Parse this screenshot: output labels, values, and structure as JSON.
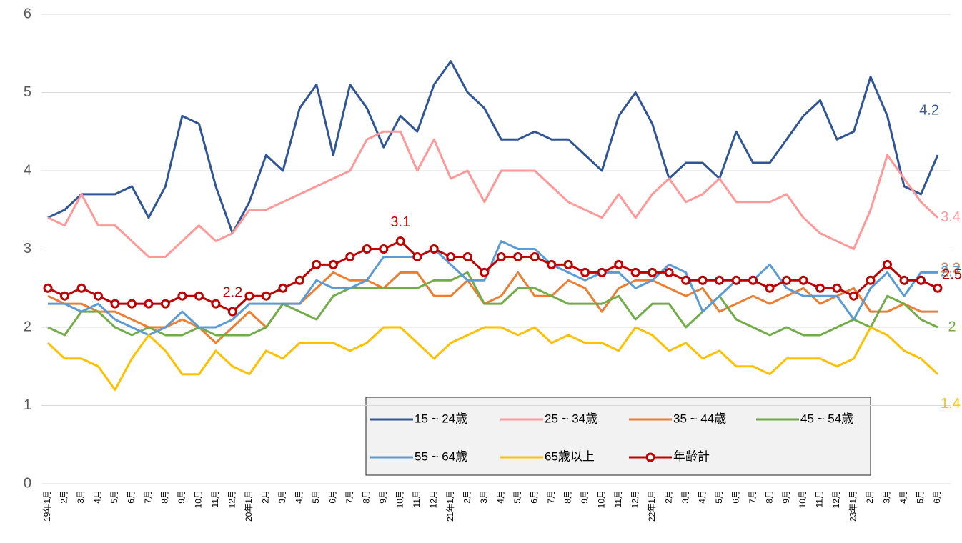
{
  "chart_data": {
    "type": "line",
    "categories": [
      "19年1月",
      "2月",
      "3月",
      "4月",
      "5月",
      "6月",
      "7月",
      "8月",
      "9月",
      "10月",
      "11月",
      "12月",
      "20年1月",
      "2月",
      "3月",
      "4月",
      "5月",
      "6月",
      "7月",
      "8月",
      "9月",
      "10月",
      "11月",
      "12月",
      "21年1月",
      "2月",
      "3月",
      "4月",
      "5月",
      "6月",
      "7月",
      "8月",
      "9月",
      "10月",
      "11月",
      "12月",
      "22年1月",
      "2月",
      "3月",
      "4月",
      "5月",
      "6月",
      "7月",
      "8月",
      "9月",
      "10月",
      "11月",
      "12月",
      "23年1月",
      "2月",
      "3月",
      "4月",
      "5月",
      "6月"
    ],
    "ylim": [
      0,
      6
    ],
    "yticks": [
      0,
      1,
      2,
      3,
      4,
      5,
      6
    ],
    "grid": true,
    "legend": "bottom-right",
    "series": [
      {
        "name": "15 ~ 24歳",
        "color": "#2f5597",
        "markers": false,
        "labeled_points": [
          53
        ],
        "values": [
          3.4,
          3.5,
          3.7,
          3.7,
          3.7,
          3.8,
          3.4,
          3.8,
          4.7,
          4.6,
          3.8,
          3.2,
          3.6,
          4.2,
          4.0,
          4.8,
          5.1,
          4.2,
          5.1,
          4.8,
          4.3,
          4.7,
          4.5,
          5.1,
          5.4,
          5.0,
          4.8,
          4.4,
          4.4,
          4.5,
          4.4,
          4.4,
          4.2,
          4.0,
          4.7,
          5.0,
          4.6,
          3.9,
          4.1,
          4.1,
          3.9,
          4.5,
          4.1,
          4.1,
          4.4,
          4.7,
          4.9,
          4.4,
          4.5,
          5.2,
          4.7,
          3.8,
          3.7,
          4.2
        ]
      },
      {
        "name": "25 ~ 34歳",
        "color": "#ff9999",
        "markers": false,
        "labeled_points": [
          53
        ],
        "values": [
          3.4,
          3.3,
          3.7,
          3.3,
          3.3,
          3.1,
          2.9,
          2.9,
          3.1,
          3.3,
          3.1,
          3.2,
          3.5,
          3.5,
          3.6,
          3.7,
          3.8,
          3.9,
          4.0,
          4.4,
          4.5,
          4.5,
          4.0,
          4.4,
          3.9,
          4.0,
          3.6,
          4.0,
          4.0,
          4.0,
          3.8,
          3.6,
          3.5,
          3.4,
          3.7,
          3.4,
          3.7,
          3.9,
          3.6,
          3.7,
          3.9,
          3.6,
          3.6,
          3.6,
          3.7,
          3.4,
          3.2,
          3.1,
          3.0,
          3.5,
          4.2,
          3.9,
          3.6,
          3.4
        ]
      },
      {
        "name": "35 ~ 44歳",
        "color": "#ed7d31",
        "markers": false,
        "labeled_points": [
          53
        ],
        "values": [
          2.4,
          2.3,
          2.3,
          2.2,
          2.2,
          2.1,
          2.0,
          2.0,
          2.1,
          2.0,
          1.8,
          2.0,
          2.2,
          2.0,
          2.3,
          2.3,
          2.5,
          2.7,
          2.6,
          2.6,
          2.5,
          2.7,
          2.7,
          2.4,
          2.4,
          2.6,
          2.3,
          2.4,
          2.7,
          2.4,
          2.4,
          2.6,
          2.5,
          2.2,
          2.5,
          2.6,
          2.6,
          2.5,
          2.4,
          2.5,
          2.2,
          2.3,
          2.4,
          2.3,
          2.4,
          2.5,
          2.3,
          2.4,
          2.5,
          2.2,
          2.2,
          2.3,
          2.2,
          2.2
        ]
      },
      {
        "name": "45 ~ 54歳",
        "color": "#70ad47",
        "markers": false,
        "labeled_points": [
          53
        ],
        "values": [
          2.0,
          1.9,
          2.2,
          2.2,
          2.0,
          1.9,
          2.0,
          1.9,
          1.9,
          2.0,
          1.9,
          1.9,
          1.9,
          2.0,
          2.3,
          2.2,
          2.1,
          2.4,
          2.5,
          2.5,
          2.5,
          2.5,
          2.5,
          2.6,
          2.6,
          2.7,
          2.3,
          2.3,
          2.5,
          2.5,
          2.4,
          2.3,
          2.3,
          2.3,
          2.4,
          2.1,
          2.3,
          2.3,
          2.0,
          2.2,
          2.4,
          2.1,
          2.0,
          1.9,
          2.0,
          1.9,
          1.9,
          2.0,
          2.1,
          2.0,
          2.4,
          2.3,
          2.1,
          2.0
        ]
      },
      {
        "name": "55 ~ 64歳",
        "color": "#5b9bd5",
        "markers": false,
        "labeled_points": [
          53
        ],
        "values": [
          2.3,
          2.3,
          2.2,
          2.3,
          2.1,
          2.0,
          1.9,
          2.0,
          2.2,
          2.0,
          2.0,
          2.1,
          2.3,
          2.3,
          2.3,
          2.3,
          2.6,
          2.5,
          2.5,
          2.6,
          2.9,
          2.9,
          2.9,
          3.0,
          2.8,
          2.6,
          2.6,
          3.1,
          3.0,
          3.0,
          2.8,
          2.7,
          2.6,
          2.7,
          2.7,
          2.5,
          2.6,
          2.8,
          2.7,
          2.2,
          2.4,
          2.6,
          2.6,
          2.8,
          2.5,
          2.4,
          2.4,
          2.4,
          2.1,
          2.5,
          2.7,
          2.4,
          2.7,
          2.7
        ]
      },
      {
        "name": "65歳以上",
        "color": "#ffc000",
        "markers": false,
        "labeled_points": [
          53
        ],
        "values": [
          1.8,
          1.6,
          1.6,
          1.5,
          1.2,
          1.6,
          1.9,
          1.7,
          1.4,
          1.4,
          1.7,
          1.5,
          1.4,
          1.7,
          1.6,
          1.8,
          1.8,
          1.8,
          1.7,
          1.8,
          2.0,
          2.0,
          1.8,
          1.6,
          1.8,
          1.9,
          2.0,
          2.0,
          1.9,
          2.0,
          1.8,
          1.9,
          1.8,
          1.8,
          1.7,
          2.0,
          1.9,
          1.7,
          1.8,
          1.6,
          1.7,
          1.5,
          1.5,
          1.4,
          1.6,
          1.6,
          1.6,
          1.5,
          1.6,
          2.0,
          1.9,
          1.7,
          1.6,
          1.4
        ]
      },
      {
        "name": "年齢計",
        "color": "#c00000",
        "markers": true,
        "labeled_points": [
          11,
          21,
          53
        ],
        "values": [
          2.5,
          2.4,
          2.5,
          2.4,
          2.3,
          2.3,
          2.3,
          2.3,
          2.4,
          2.4,
          2.3,
          2.2,
          2.4,
          2.4,
          2.5,
          2.6,
          2.8,
          2.8,
          2.9,
          3.0,
          3.0,
          3.1,
          2.9,
          3.0,
          2.9,
          2.9,
          2.7,
          2.9,
          2.9,
          2.9,
          2.8,
          2.8,
          2.7,
          2.7,
          2.8,
          2.7,
          2.7,
          2.7,
          2.6,
          2.6,
          2.6,
          2.6,
          2.6,
          2.5,
          2.6,
          2.6,
          2.5,
          2.5,
          2.4,
          2.6,
          2.8,
          2.6,
          2.6,
          2.5
        ]
      }
    ]
  }
}
